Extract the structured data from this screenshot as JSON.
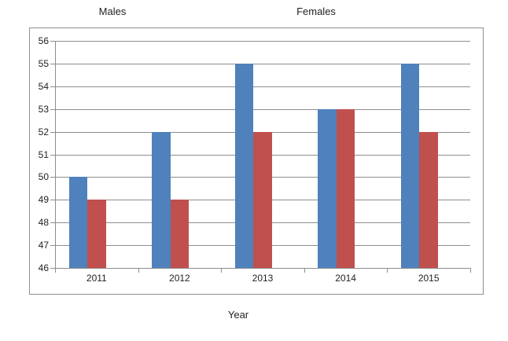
{
  "chart_data": {
    "type": "bar",
    "title": "",
    "categories": [
      "2011",
      "2012",
      "2013",
      "2014",
      "2015"
    ],
    "series": [
      {
        "name": "Males",
        "color": "#4F81BD",
        "values": [
          50,
          52,
          55,
          53,
          55
        ]
      },
      {
        "name": "Females",
        "color": "#C0504D",
        "values": [
          49,
          49,
          52,
          53,
          52
        ]
      }
    ],
    "xlabel": "Year",
    "ylabel": "",
    "ylim": [
      46,
      56
    ],
    "yticks": [
      46,
      47,
      48,
      49,
      50,
      51,
      52,
      53,
      54,
      55,
      56
    ],
    "grid": true,
    "legend_position": "floating-labels-top",
    "axis_color": "#8e8e8e",
    "text_color": "#1f1f1f",
    "plot_background": "#ffffff"
  }
}
